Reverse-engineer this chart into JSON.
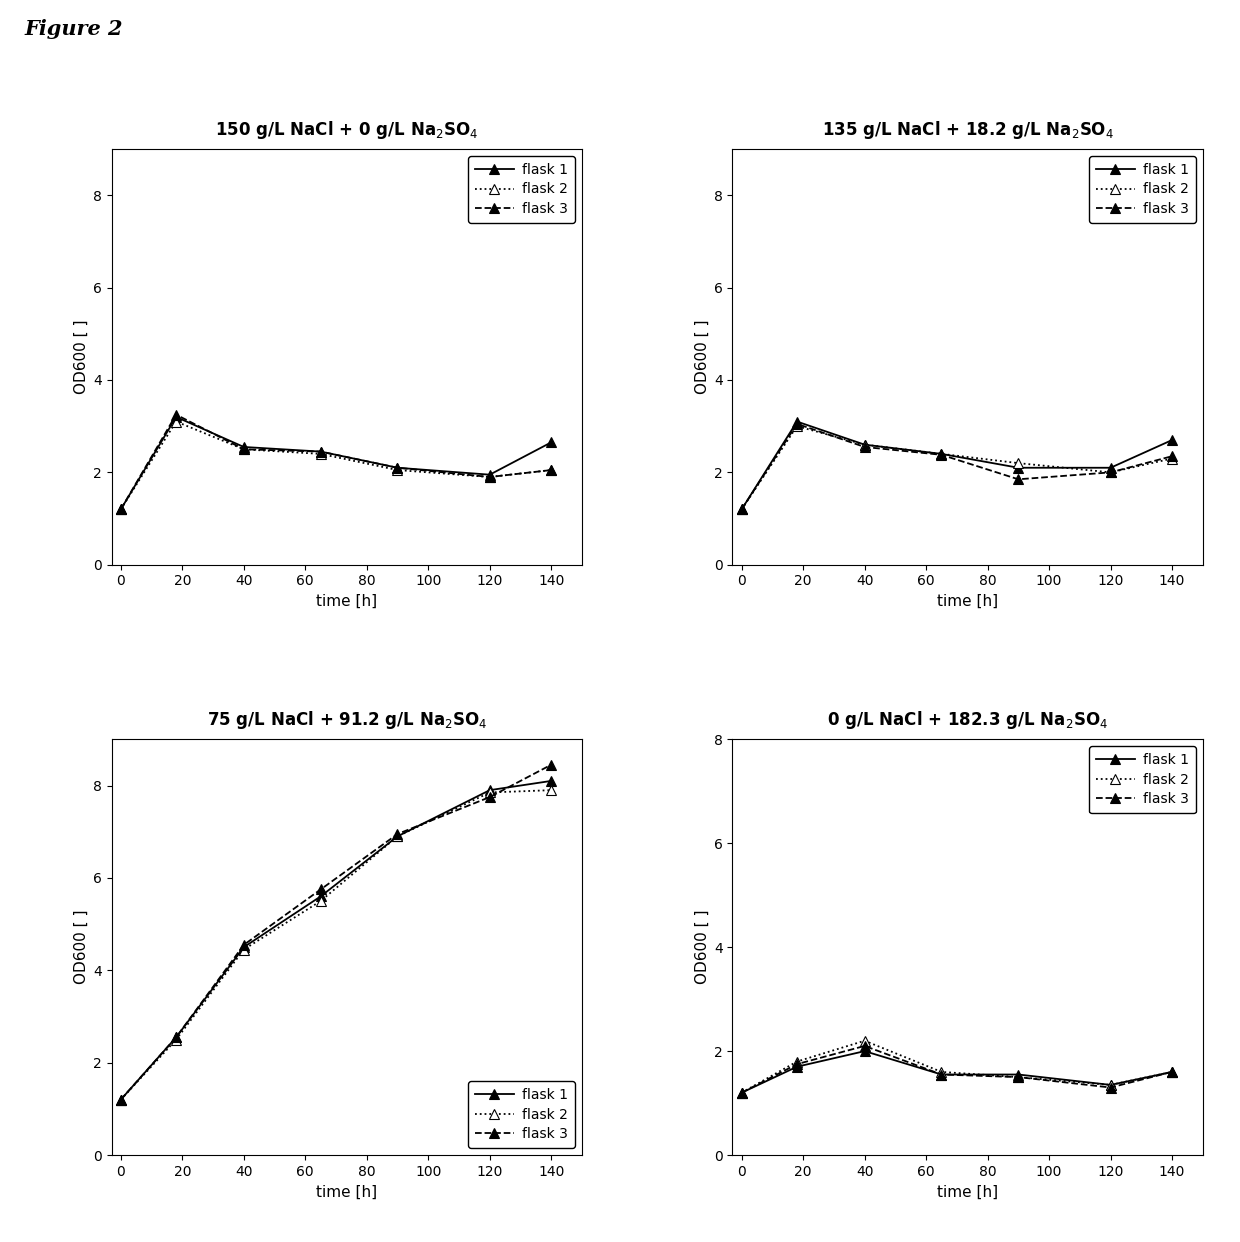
{
  "figure_label_text": "Figure 2",
  "subplots": [
    {
      "title": "150 g/L NaCl + 0 g/L Na$_2$SO$_4$",
      "x": [
        0,
        18,
        40,
        65,
        90,
        120,
        140
      ],
      "flask1": [
        1.2,
        3.2,
        2.55,
        2.45,
        2.1,
        1.95,
        2.65
      ],
      "flask2": [
        1.2,
        3.1,
        2.5,
        2.4,
        2.05,
        1.9,
        2.05
      ],
      "flask3": [
        1.2,
        3.25,
        2.5,
        2.45,
        2.1,
        1.9,
        2.05
      ],
      "ylim": [
        0,
        9
      ],
      "yticks": [
        0,
        2,
        4,
        6,
        8
      ],
      "xticks": [
        0,
        20,
        40,
        60,
        80,
        100,
        120,
        140
      ],
      "legend_loc": "upper right"
    },
    {
      "title": "135 g/L NaCl + 18.2 g/L Na$_2$SO$_4$",
      "x": [
        0,
        18,
        40,
        65,
        90,
        120,
        140
      ],
      "flask1": [
        1.2,
        3.1,
        2.6,
        2.4,
        2.1,
        2.1,
        2.7
      ],
      "flask2": [
        1.2,
        3.0,
        2.6,
        2.4,
        2.2,
        2.0,
        2.3
      ],
      "flask3": [
        1.2,
        3.05,
        2.55,
        2.38,
        1.85,
        2.0,
        2.35
      ],
      "ylim": [
        0,
        9
      ],
      "yticks": [
        0,
        2,
        4,
        6,
        8
      ],
      "xticks": [
        0,
        20,
        40,
        60,
        80,
        100,
        120,
        140
      ],
      "legend_loc": "upper right"
    },
    {
      "title": "75 g/L NaCl + 91.2 g/L Na$_2$SO$_4$",
      "x": [
        0,
        18,
        40,
        65,
        90,
        120,
        140
      ],
      "flask1": [
        1.2,
        2.55,
        4.5,
        5.6,
        6.9,
        7.9,
        8.1
      ],
      "flask2": [
        1.2,
        2.5,
        4.45,
        5.5,
        6.9,
        7.85,
        7.9
      ],
      "flask3": [
        1.2,
        2.55,
        4.55,
        5.75,
        6.95,
        7.75,
        8.45
      ],
      "ylim": [
        0,
        9
      ],
      "yticks": [
        0,
        2,
        4,
        6,
        8
      ],
      "xticks": [
        0,
        20,
        40,
        60,
        80,
        100,
        120,
        140
      ],
      "legend_loc": "lower right"
    },
    {
      "title": "0 g/L NaCl + 182.3 g/L Na$_2$SO$_4$",
      "x": [
        0,
        18,
        40,
        65,
        90,
        120,
        140
      ],
      "flask1": [
        1.2,
        1.7,
        2.0,
        1.55,
        1.55,
        1.35,
        1.6
      ],
      "flask2": [
        1.2,
        1.8,
        2.2,
        1.6,
        1.5,
        1.35,
        1.6
      ],
      "flask3": [
        1.2,
        1.75,
        2.1,
        1.55,
        1.5,
        1.3,
        1.6
      ],
      "ylim": [
        0,
        8
      ],
      "yticks": [
        0,
        2,
        4,
        6,
        8
      ],
      "xticks": [
        0,
        20,
        40,
        60,
        80,
        100,
        120,
        140
      ],
      "legend_loc": "upper right"
    }
  ],
  "xlabel": "time [h]",
  "ylabel": "OD600 [ ]",
  "bg_color": "white"
}
